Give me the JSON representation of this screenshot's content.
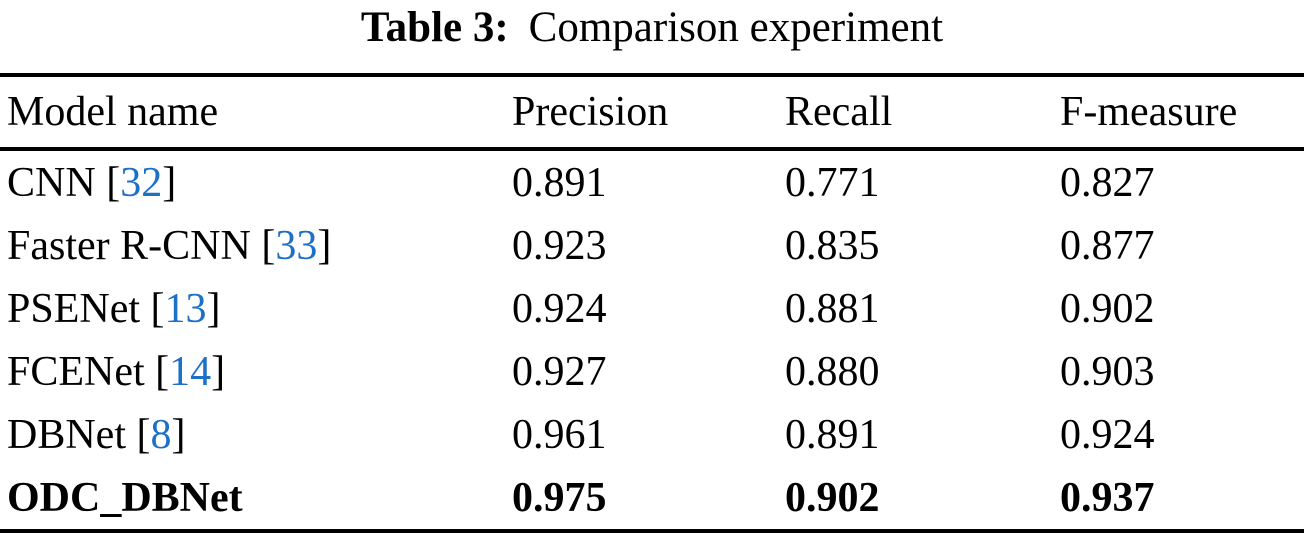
{
  "caption": {
    "label": "Table 3:",
    "text": "Comparison experiment"
  },
  "table": {
    "columns": [
      "Model name",
      "Precision",
      "Recall",
      "F-measure"
    ],
    "citation_brackets": {
      "open": "[",
      "close": "]"
    },
    "rows": [
      {
        "model": "CNN",
        "citation": "32",
        "precision": "0.891",
        "recall": "0.771",
        "f_measure": "0.827",
        "bold": false
      },
      {
        "model": "Faster R-CNN",
        "citation": "33",
        "precision": "0.923",
        "recall": "0.835",
        "f_measure": "0.877",
        "bold": false
      },
      {
        "model": "PSENet",
        "citation": "13",
        "precision": "0.924",
        "recall": "0.881",
        "f_measure": "0.902",
        "bold": false
      },
      {
        "model": "FCENet",
        "citation": "14",
        "precision": "0.927",
        "recall": "0.880",
        "f_measure": "0.903",
        "bold": false
      },
      {
        "model": "DBNet",
        "citation": "8",
        "precision": "0.961",
        "recall": "0.891",
        "f_measure": "0.924",
        "bold": false
      },
      {
        "model": "ODC_DBNet",
        "citation": null,
        "precision": "0.975",
        "recall": "0.902",
        "f_measure": "0.937",
        "bold": true
      }
    ]
  },
  "colors": {
    "text": "#000000",
    "rule": "#000000",
    "citation_blue": "#1c70c7",
    "background": "#ffffff"
  }
}
